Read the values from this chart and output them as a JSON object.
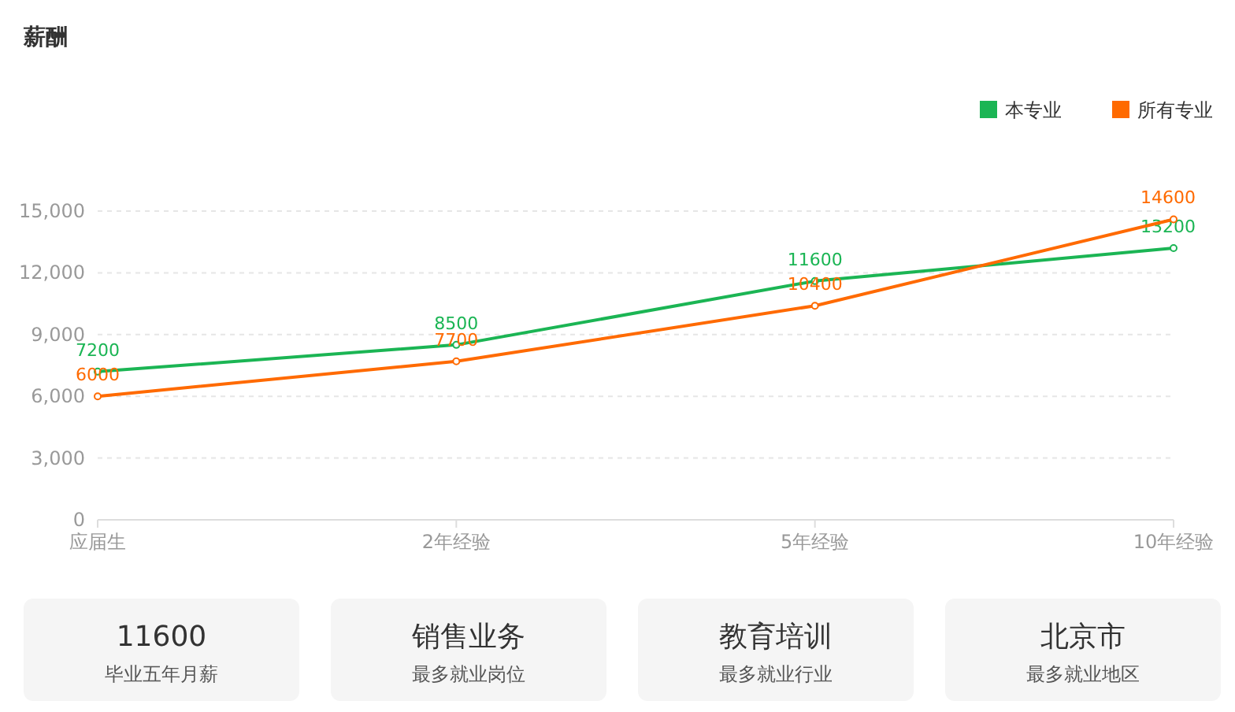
{
  "chart_data": [
    {
      "type": "line",
      "title": "薪酬",
      "categories": [
        "应届生",
        "2年经验",
        "5年经验",
        "10年经验"
      ],
      "series": [
        {
          "name": "本专业",
          "color": "#1bb554",
          "values": [
            7200,
            8500,
            11600,
            13200
          ]
        },
        {
          "name": "所有专业",
          "color": "#ff6a00",
          "values": [
            6000,
            7700,
            10400,
            14600
          ]
        }
      ],
      "ylim": [
        0,
        15000
      ],
      "yticks": [
        0,
        {
          "value": 3000,
          "label": "3,000"
        },
        {
          "value": 6000,
          "label": "6,000"
        },
        {
          "value": 9000,
          "label": "9,000"
        },
        {
          "value": 12000,
          "label": "12,000"
        },
        {
          "value": 15000,
          "label": "15,000"
        }
      ],
      "grid": "y",
      "legend": "top right",
      "marker": "circle",
      "line_style": "solid",
      "data_labels": true
    },
    {
      "type": "other",
      "title": "11600",
      "subtitle": "毕业五年月薪"
    },
    {
      "type": "other",
      "title": "销售业务",
      "subtitle": "最多就业岗位"
    },
    {
      "type": "other",
      "title": "教育培训",
      "subtitle": "最多就业行业"
    },
    {
      "type": "other",
      "title": "北京市",
      "subtitle": "最多就业地区"
    }
  ]
}
